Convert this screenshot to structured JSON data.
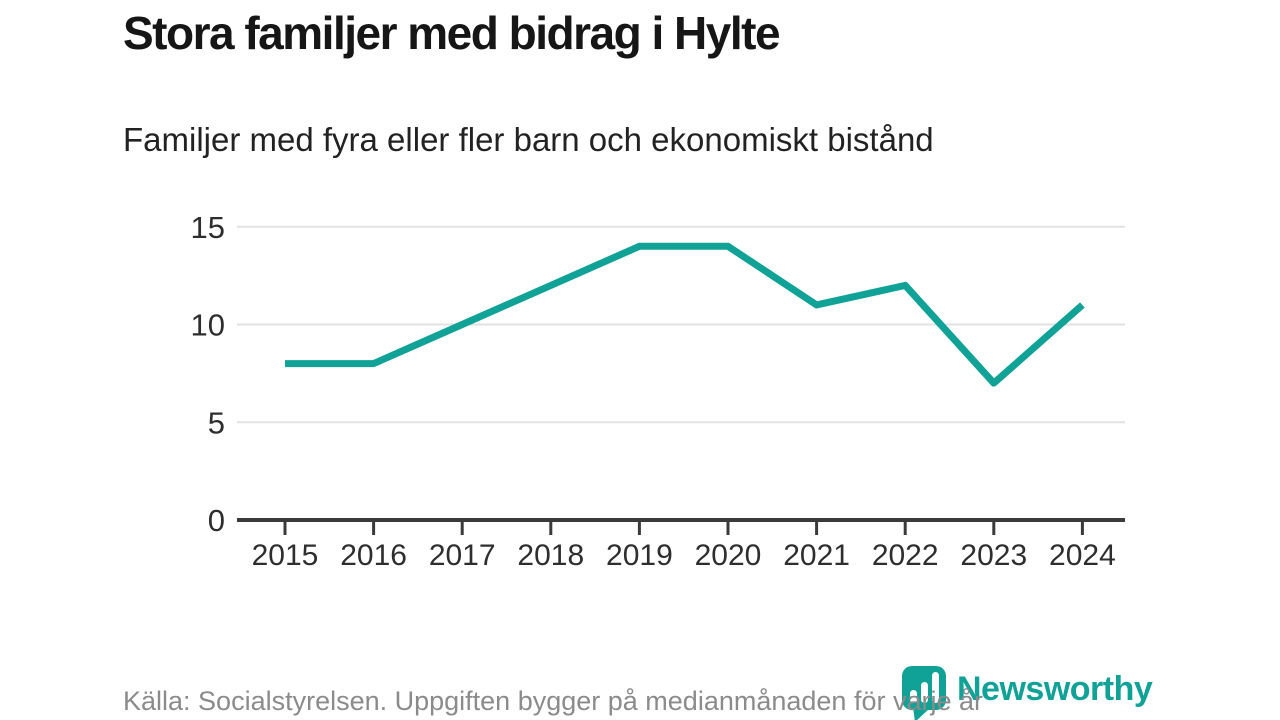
{
  "title": "Stora familjer med bidrag i Hylte",
  "subtitle": "Familjer med fyra eller fler barn och ekonomiskt bistånd",
  "footer": {
    "source": "Källa: Socialstyrelsen. Uppgiften bygger på medianmånaden för varje år"
  },
  "logo": {
    "name": "Newsworthy",
    "text": "Newsworthy"
  },
  "colors": {
    "line": "#10a296",
    "grid": "#e2e2e2",
    "axis": "#3a3a3a",
    "tick_label": "#2e2e2e",
    "footer_text": "#8b8b8b",
    "logo": "#10a296"
  },
  "chart_data": {
    "type": "line",
    "title": "Stora familjer med bidrag i Hylte",
    "subtitle": "Familjer med fyra eller fler barn och ekonomiskt bistånd",
    "x": [
      2015,
      2016,
      2017,
      2018,
      2019,
      2020,
      2021,
      2022,
      2023,
      2024
    ],
    "series": [
      {
        "name": "Familjer med fyra eller fler barn och ekonomiskt bistånd",
        "values": [
          8,
          8,
          10,
          12,
          14,
          14,
          11,
          12,
          7,
          11
        ]
      }
    ],
    "xlabel": "",
    "ylabel": "",
    "ylim": [
      0,
      15
    ],
    "yticks": [
      0,
      5,
      10,
      15
    ],
    "xtick_labels": [
      "2015",
      "2016",
      "2017",
      "2018",
      "2019",
      "2020",
      "2021",
      "2022",
      "2023",
      "2024"
    ],
    "grid": true,
    "legend": "none"
  }
}
